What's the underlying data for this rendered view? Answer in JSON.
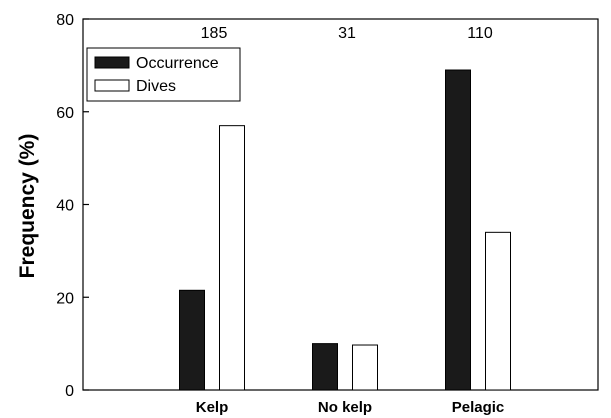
{
  "chart_data": {
    "type": "bar",
    "categories": [
      "Kelp",
      "No kelp",
      "Pelagic"
    ],
    "top_labels": [
      "185",
      "31",
      "110"
    ],
    "series": [
      {
        "name": "Occurrence",
        "values": [
          21.5,
          10,
          69
        ],
        "color": "#1a1a1a"
      },
      {
        "name": "Dives",
        "values": [
          57,
          9.7,
          34
        ],
        "color": "#ffffff"
      }
    ],
    "title": "",
    "xlabel": "",
    "ylabel": "Frequency  (%)",
    "ylim": [
      0,
      80
    ],
    "yticks": [
      "0",
      "20",
      "40",
      "60",
      "80"
    ],
    "grid": false,
    "legend_position": "top-left"
  }
}
